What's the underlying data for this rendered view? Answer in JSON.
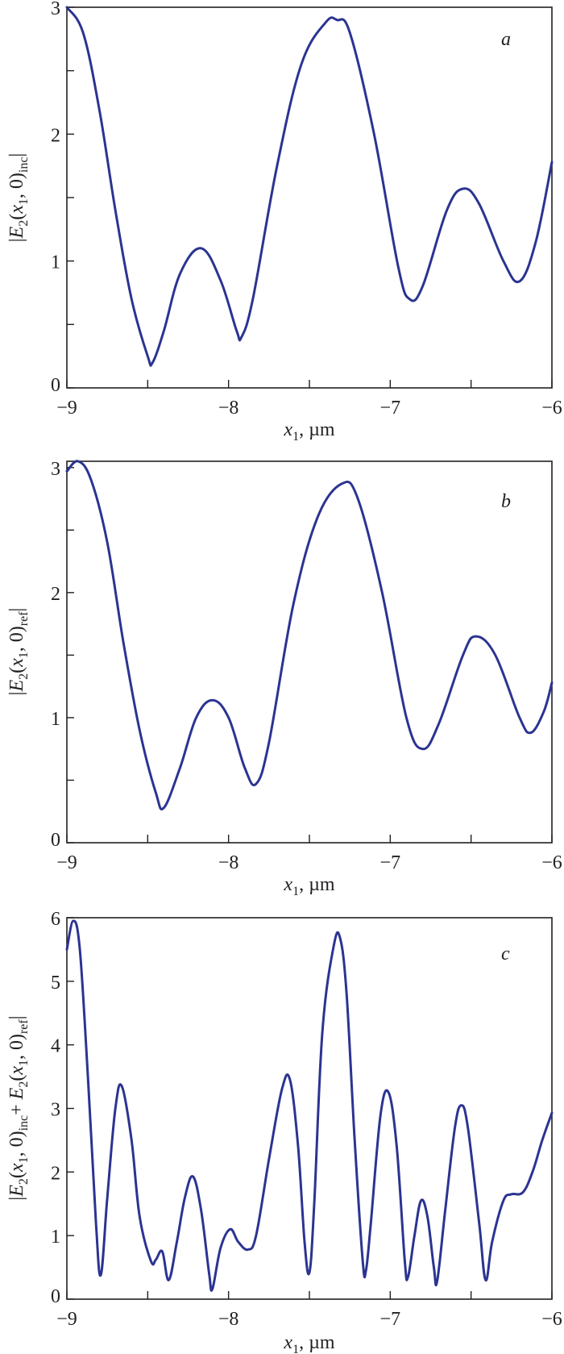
{
  "figure": {
    "curve_color": "#2b3491",
    "axis_color": "#231f20"
  },
  "chart_data": [
    {
      "type": "line",
      "panel_tag": "a",
      "title": "",
      "xlabel": "x1, µm",
      "ylabel": "|E2(x1, 0)inc|",
      "xlim": [
        -9,
        -6
      ],
      "ylim": [
        0,
        3
      ],
      "x_ticks": [
        -9,
        -8.5,
        -8,
        -7.5,
        -7,
        -6.5,
        -6
      ],
      "x_tick_labels": [
        "−9",
        "",
        "−8",
        "",
        "−7",
        "",
        "−6"
      ],
      "y_ticks": [
        0,
        0.5,
        1,
        1.5,
        2,
        2.5,
        3
      ],
      "y_tick_labels": [
        "0",
        "",
        "1",
        "",
        "2",
        "",
        "3"
      ],
      "grid": false,
      "series": [
        {
          "name": "|E2(x1,0)inc|",
          "x": [
            -9.0,
            -8.9,
            -8.8,
            -8.7,
            -8.6,
            -8.5,
            -8.47,
            -8.4,
            -8.3,
            -8.17,
            -8.05,
            -7.95,
            -7.92,
            -7.85,
            -7.7,
            -7.55,
            -7.4,
            -7.33,
            -7.25,
            -7.1,
            -6.95,
            -6.88,
            -6.8,
            -6.65,
            -6.55,
            -6.45,
            -6.3,
            -6.2,
            -6.1,
            -6.0
          ],
          "y": [
            3.0,
            2.8,
            2.2,
            1.4,
            0.7,
            0.25,
            0.2,
            0.45,
            0.9,
            1.1,
            0.85,
            0.45,
            0.4,
            0.7,
            1.75,
            2.55,
            2.88,
            2.9,
            2.8,
            2.0,
            0.95,
            0.7,
            0.8,
            1.4,
            1.57,
            1.45,
            1.0,
            0.84,
            1.15,
            1.78
          ]
        }
      ]
    },
    {
      "type": "line",
      "panel_tag": "b",
      "title": "",
      "xlabel": "x1, µm",
      "ylabel": "|E2(x1, 0)ref|",
      "xlim": [
        -9,
        -6
      ],
      "ylim": [
        0,
        3.05
      ],
      "x_ticks": [
        -9,
        -8.5,
        -8,
        -7.5,
        -7,
        -6.5,
        -6
      ],
      "x_tick_labels": [
        "−9",
        "",
        "−8",
        "",
        "−7",
        "",
        "−6"
      ],
      "y_ticks": [
        0,
        0.5,
        1,
        1.5,
        2,
        2.5,
        3
      ],
      "y_tick_labels": [
        "0",
        "",
        "1",
        "",
        "2",
        "",
        "3"
      ],
      "grid": false,
      "series": [
        {
          "name": "|E2(x1,0)ref|",
          "x": [
            -9.0,
            -8.93,
            -8.85,
            -8.75,
            -8.65,
            -8.55,
            -8.45,
            -8.4,
            -8.3,
            -8.2,
            -8.1,
            -8.0,
            -7.9,
            -7.83,
            -7.75,
            -7.6,
            -7.45,
            -7.3,
            -7.2,
            -7.05,
            -6.9,
            -6.8,
            -6.7,
            -6.55,
            -6.47,
            -6.35,
            -6.2,
            -6.13,
            -6.05,
            -6.0
          ],
          "y": [
            2.97,
            3.05,
            2.9,
            2.4,
            1.6,
            0.9,
            0.4,
            0.28,
            0.6,
            1.0,
            1.14,
            1.0,
            0.6,
            0.47,
            0.8,
            1.9,
            2.6,
            2.87,
            2.75,
            2.0,
            1.0,
            0.75,
            0.95,
            1.5,
            1.65,
            1.5,
            1.0,
            0.88,
            1.05,
            1.28
          ]
        }
      ]
    },
    {
      "type": "line",
      "panel_tag": "c",
      "title": "",
      "xlabel": "x1, µm",
      "ylabel": "|E2(x1, 0)inc + E2(x1, 0)ref|",
      "xlim": [
        -9,
        -6
      ],
      "ylim": [
        0,
        6
      ],
      "x_ticks": [
        -9,
        -8.5,
        -8,
        -7.5,
        -7,
        -6.5,
        -6
      ],
      "x_tick_labels": [
        "−9",
        "",
        "−8",
        "",
        "−7",
        "",
        "−6"
      ],
      "y_ticks": [
        0,
        1,
        2,
        3,
        4,
        5,
        6
      ],
      "y_tick_labels": [
        "0",
        "1",
        "2",
        "3",
        "4",
        "5",
        "6"
      ],
      "grid": false,
      "series": [
        {
          "name": "|E2inc + E2ref|",
          "x": [
            -9.0,
            -8.96,
            -8.92,
            -8.87,
            -8.82,
            -8.79,
            -8.75,
            -8.7,
            -8.66,
            -8.6,
            -8.55,
            -8.48,
            -8.45,
            -8.41,
            -8.37,
            -8.32,
            -8.27,
            -8.22,
            -8.17,
            -8.12,
            -8.1,
            -8.05,
            -7.99,
            -7.94,
            -7.88,
            -7.83,
            -7.75,
            -7.67,
            -7.62,
            -7.57,
            -7.53,
            -7.5,
            -7.47,
            -7.42,
            -7.35,
            -7.31,
            -7.27,
            -7.22,
            -7.17,
            -7.15,
            -7.12,
            -7.06,
            -7.01,
            -6.96,
            -6.91,
            -6.89,
            -6.85,
            -6.81,
            -6.77,
            -6.73,
            -6.71,
            -6.66,
            -6.6,
            -6.56,
            -6.52,
            -6.45,
            -6.41,
            -6.37,
            -6.3,
            -6.25,
            -6.18,
            -6.12,
            -6.06,
            -6.0
          ],
          "y": [
            5.5,
            5.95,
            5.5,
            3.5,
            1.2,
            0.38,
            1.6,
            3.0,
            3.35,
            2.5,
            1.3,
            0.6,
            0.62,
            0.75,
            0.3,
            0.9,
            1.6,
            1.93,
            1.4,
            0.4,
            0.16,
            0.8,
            1.1,
            0.9,
            0.78,
            1.0,
            2.2,
            3.3,
            3.45,
            2.4,
            0.9,
            0.42,
            1.5,
            4.2,
            5.55,
            5.68,
            4.8,
            2.5,
            0.6,
            0.45,
            1.2,
            2.9,
            3.25,
            2.4,
            0.6,
            0.35,
            1.0,
            1.55,
            1.3,
            0.5,
            0.28,
            1.4,
            2.7,
            3.05,
            2.7,
            1.2,
            0.3,
            0.9,
            1.55,
            1.65,
            1.68,
            2.0,
            2.5,
            2.93
          ]
        }
      ]
    }
  ]
}
